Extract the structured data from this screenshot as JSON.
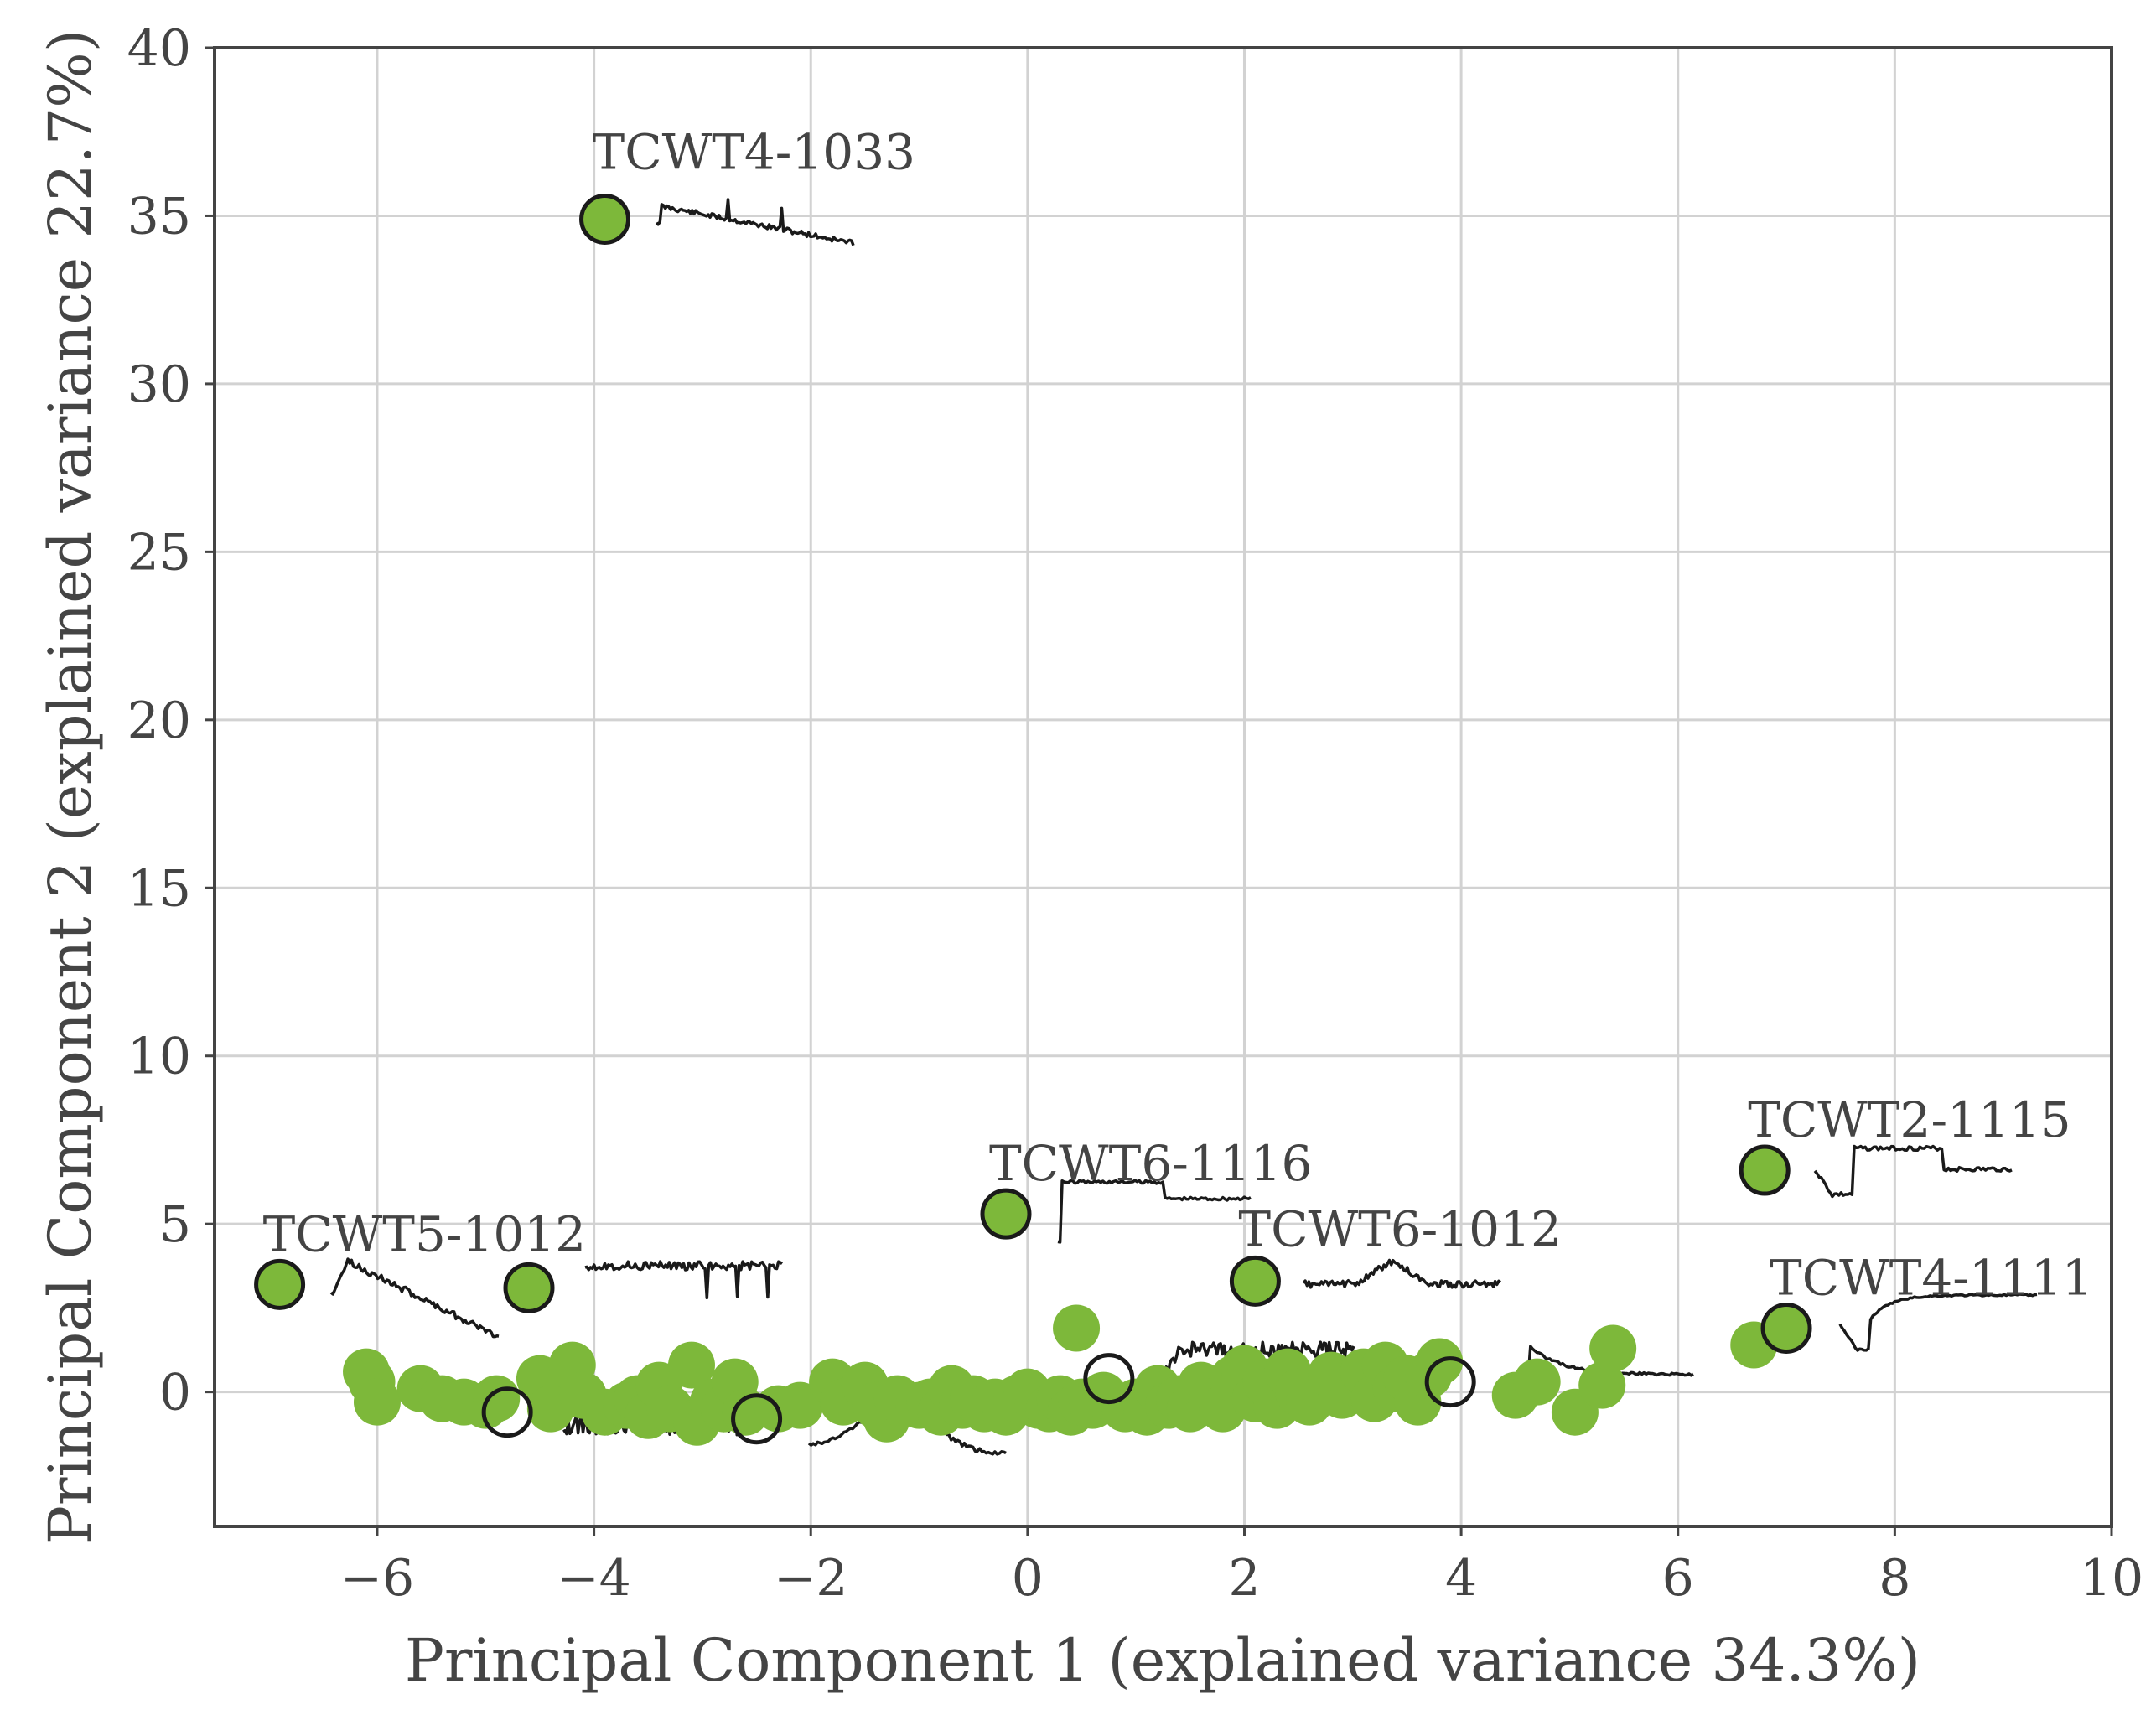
{
  "chart_data": {
    "type": "scatter",
    "title": "",
    "xlabel": "Principal Component 1 (explained variance 34.3%)",
    "ylabel": "Principal Component 2 (explained variance 22.7%)",
    "xlim": [
      -7.5,
      10
    ],
    "ylim": [
      -4,
      40
    ],
    "xticks": [
      -6,
      -4,
      -2,
      0,
      2,
      4,
      6,
      8,
      10
    ],
    "yticks": [
      0,
      5,
      10,
      15,
      20,
      25,
      30,
      35,
      40
    ],
    "xtick_labels": [
      "−6",
      "−4",
      "−2",
      "0",
      "2",
      "4",
      "6",
      "8",
      "10"
    ],
    "ytick_labels": [
      "0",
      "5",
      "10",
      "15",
      "20",
      "25",
      "30",
      "35",
      "40"
    ],
    "grid": true,
    "marker_color": "#7db83a",
    "labeled_points": [
      {
        "label": "TCWT4-1033",
        "x": -3.9,
        "y": 34.9,
        "filled": true
      },
      {
        "label": "TCWT5-1012",
        "x": -6.9,
        "y": 3.2,
        "filled": true
      },
      {
        "label": "TCWT6-1116",
        "x": -0.2,
        "y": 5.3,
        "filled": true
      },
      {
        "label": "TCWT6-1012",
        "x": 2.1,
        "y": 3.3,
        "filled": true
      },
      {
        "label": "TCWT2-1115",
        "x": 6.8,
        "y": 6.6,
        "filled": true
      },
      {
        "label": "TCWT4-1111",
        "x": 7.0,
        "y": 1.9,
        "filled": true
      }
    ],
    "highlighted_points": [
      {
        "x": -4.6,
        "y": 3.1,
        "filled": true
      },
      {
        "x": -4.8,
        "y": -0.6,
        "filled": false
      },
      {
        "x": -2.5,
        "y": -0.8,
        "filled": false
      },
      {
        "x": 0.75,
        "y": 0.4,
        "filled": false
      },
      {
        "x": 3.9,
        "y": 0.3,
        "filled": false
      }
    ],
    "points": [
      [
        -6.1,
        0.6
      ],
      [
        -6.05,
        0.3
      ],
      [
        -6.0,
        -0.3
      ],
      [
        -5.6,
        0.1
      ],
      [
        -5.4,
        -0.2
      ],
      [
        -5.2,
        -0.3
      ],
      [
        -5.0,
        -0.4
      ],
      [
        -4.9,
        -0.2
      ],
      [
        -4.5,
        0.4
      ],
      [
        -4.4,
        -0.5
      ],
      [
        -4.2,
        0.8
      ],
      [
        -4.1,
        -0.1
      ],
      [
        -3.9,
        -0.6
      ],
      [
        -3.7,
        -0.4
      ],
      [
        -3.6,
        -0.2
      ],
      [
        -3.5,
        -0.7
      ],
      [
        -3.4,
        0.2
      ],
      [
        -3.3,
        -0.5
      ],
      [
        -3.1,
        0.8
      ],
      [
        -3.05,
        -0.9
      ],
      [
        -2.9,
        -0.3
      ],
      [
        -2.8,
        -0.5
      ],
      [
        -2.7,
        0.3
      ],
      [
        -2.6,
        -0.6
      ],
      [
        -2.3,
        -0.5
      ],
      [
        -2.1,
        -0.4
      ],
      [
        -1.8,
        0.3
      ],
      [
        -1.7,
        -0.3
      ],
      [
        -1.5,
        0.2
      ],
      [
        -1.4,
        -0.4
      ],
      [
        -1.3,
        -0.8
      ],
      [
        -1.2,
        -0.2
      ],
      [
        -1.0,
        -0.4
      ],
      [
        -0.9,
        -0.3
      ],
      [
        -0.8,
        -0.6
      ],
      [
        -0.7,
        0.1
      ],
      [
        -0.6,
        -0.4
      ],
      [
        -0.5,
        -0.2
      ],
      [
        -0.4,
        -0.5
      ],
      [
        -0.3,
        -0.3
      ],
      [
        -0.2,
        -0.6
      ],
      [
        -0.1,
        -0.2
      ],
      [
        0.0,
        0.0
      ],
      [
        0.1,
        -0.4
      ],
      [
        0.2,
        -0.5
      ],
      [
        0.3,
        -0.2
      ],
      [
        0.4,
        -0.6
      ],
      [
        0.45,
        1.9
      ],
      [
        0.5,
        -0.3
      ],
      [
        0.6,
        -0.4
      ],
      [
        0.7,
        -0.1
      ],
      [
        0.9,
        -0.5
      ],
      [
        1.0,
        -0.3
      ],
      [
        1.1,
        -0.6
      ],
      [
        1.2,
        0.1
      ],
      [
        1.3,
        -0.4
      ],
      [
        1.4,
        -0.2
      ],
      [
        1.5,
        -0.5
      ],
      [
        1.6,
        0.2
      ],
      [
        1.7,
        -0.3
      ],
      [
        1.8,
        -0.5
      ],
      [
        1.9,
        0.4
      ],
      [
        2.0,
        0.7
      ],
      [
        2.1,
        -0.2
      ],
      [
        2.2,
        0.3
      ],
      [
        2.3,
        -0.4
      ],
      [
        2.4,
        0.6
      ],
      [
        2.5,
        0.0
      ],
      [
        2.6,
        -0.3
      ],
      [
        2.7,
        0.2
      ],
      [
        2.8,
        0.5
      ],
      [
        2.9,
        -0.1
      ],
      [
        3.0,
        0.3
      ],
      [
        3.1,
        0.6
      ],
      [
        3.2,
        -0.2
      ],
      [
        3.3,
        0.8
      ],
      [
        3.4,
        0.1
      ],
      [
        3.5,
        0.4
      ],
      [
        3.6,
        -0.3
      ],
      [
        3.7,
        0.5
      ],
      [
        3.8,
        0.9
      ],
      [
        4.5,
        -0.1
      ],
      [
        4.7,
        0.3
      ],
      [
        5.05,
        -0.6
      ],
      [
        5.3,
        0.2
      ],
      [
        5.4,
        1.3
      ],
      [
        6.7,
        1.4
      ]
    ]
  }
}
